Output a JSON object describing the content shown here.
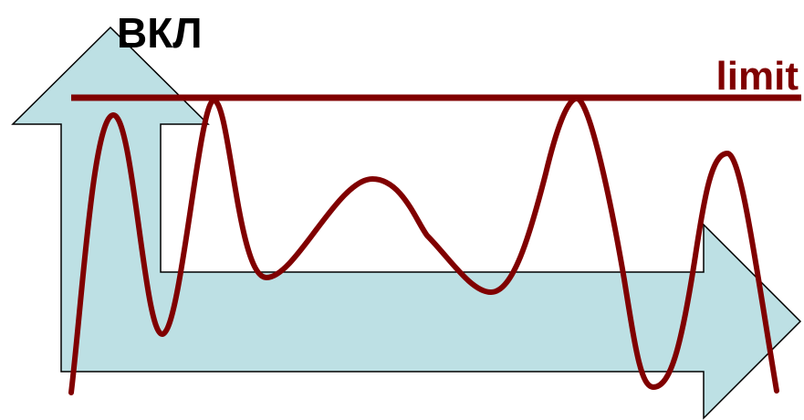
{
  "labels": {
    "top": "ВКЛ",
    "limit": "limit"
  },
  "colors": {
    "arrow_fill": "#bde0e4",
    "arrow_stroke": "#000000",
    "wave": "#800000",
    "limit_line": "#800000",
    "top_label": "#000000",
    "limit_label": "#800000",
    "background": "#ffffff"
  }
}
